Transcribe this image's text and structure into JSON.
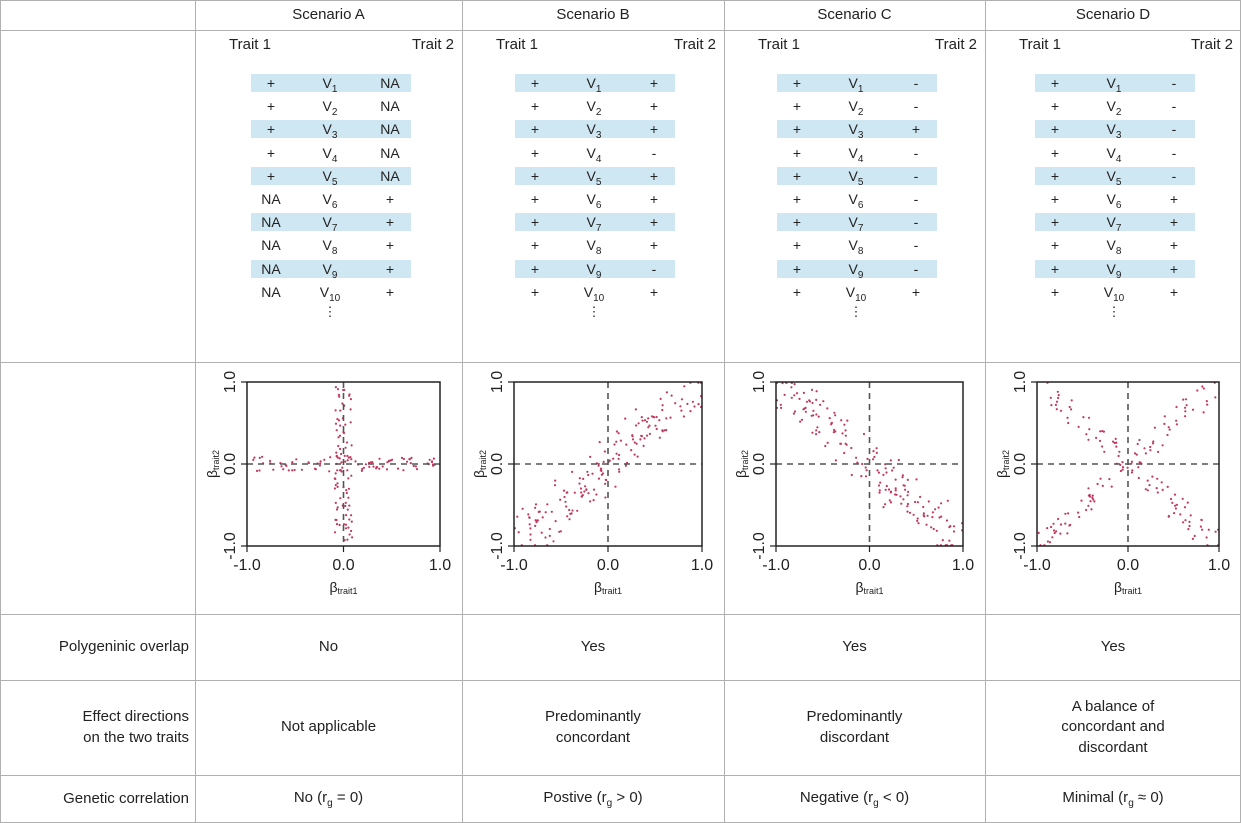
{
  "scenarios": [
    {
      "name": "Scenario A",
      "trait1_label": "Trait 1",
      "trait2_label": "Trait 2",
      "variants": [
        {
          "t1": "+",
          "v": "V1",
          "t2": "NA"
        },
        {
          "t1": "+",
          "v": "V2",
          "t2": "NA"
        },
        {
          "t1": "+",
          "v": "V3",
          "t2": "NA"
        },
        {
          "t1": "+",
          "v": "V4",
          "t2": "NA"
        },
        {
          "t1": "+",
          "v": "V5",
          "t2": "NA"
        },
        {
          "t1": "NA",
          "v": "V6",
          "t2": "+"
        },
        {
          "t1": "NA",
          "v": "V7",
          "t2": "+"
        },
        {
          "t1": "NA",
          "v": "V8",
          "t2": "+"
        },
        {
          "t1": "NA",
          "v": "V9",
          "t2": "+"
        },
        {
          "t1": "NA",
          "v": "V10",
          "t2": "+"
        }
      ],
      "polygenic_overlap": "No",
      "effect_directions": [
        "Not applicable"
      ],
      "genetic_correlation": "No (r",
      "genetic_correlation_tail": " = 0)"
    },
    {
      "name": "Scenario B",
      "trait1_label": "Trait 1",
      "trait2_label": "Trait 2",
      "variants": [
        {
          "t1": "+",
          "v": "V1",
          "t2": "+"
        },
        {
          "t1": "+",
          "v": "V2",
          "t2": "+"
        },
        {
          "t1": "+",
          "v": "V3",
          "t2": "+"
        },
        {
          "t1": "+",
          "v": "V4",
          "t2": "-"
        },
        {
          "t1": "+",
          "v": "V5",
          "t2": "+"
        },
        {
          "t1": "+",
          "v": "V6",
          "t2": "+"
        },
        {
          "t1": "+",
          "v": "V7",
          "t2": "+"
        },
        {
          "t1": "+",
          "v": "V8",
          "t2": "+"
        },
        {
          "t1": "+",
          "v": "V9",
          "t2": "-"
        },
        {
          "t1": "+",
          "v": "V10",
          "t2": "+"
        }
      ],
      "polygenic_overlap": "Yes",
      "effect_directions": [
        "Predominantly",
        "concordant"
      ],
      "genetic_correlation": "Postive (r",
      "genetic_correlation_tail": " > 0)"
    },
    {
      "name": "Scenario C",
      "trait1_label": "Trait 1",
      "trait2_label": "Trait 2",
      "variants": [
        {
          "t1": "+",
          "v": "V1",
          "t2": "-"
        },
        {
          "t1": "+",
          "v": "V2",
          "t2": "-"
        },
        {
          "t1": "+",
          "v": "V3",
          "t2": "+"
        },
        {
          "t1": "+",
          "v": "V4",
          "t2": "-"
        },
        {
          "t1": "+",
          "v": "V5",
          "t2": "-"
        },
        {
          "t1": "+",
          "v": "V6",
          "t2": "-"
        },
        {
          "t1": "+",
          "v": "V7",
          "t2": "-"
        },
        {
          "t1": "+",
          "v": "V8",
          "t2": "-"
        },
        {
          "t1": "+",
          "v": "V9",
          "t2": "-"
        },
        {
          "t1": "+",
          "v": "V10",
          "t2": "+"
        }
      ],
      "polygenic_overlap": "Yes",
      "effect_directions": [
        "Predominantly",
        "discordant"
      ],
      "genetic_correlation": "Negative (r",
      "genetic_correlation_tail": " < 0)"
    },
    {
      "name": "Scenario D",
      "trait1_label": "Trait 1",
      "trait2_label": "Trait 2",
      "variants": [
        {
          "t1": "+",
          "v": "V1",
          "t2": "-"
        },
        {
          "t1": "+",
          "v": "V2",
          "t2": "-"
        },
        {
          "t1": "+",
          "v": "V3",
          "t2": "-"
        },
        {
          "t1": "+",
          "v": "V4",
          "t2": "-"
        },
        {
          "t1": "+",
          "v": "V5",
          "t2": "-"
        },
        {
          "t1": "+",
          "v": "V6",
          "t2": "+"
        },
        {
          "t1": "+",
          "v": "V7",
          "t2": "+"
        },
        {
          "t1": "+",
          "v": "V8",
          "t2": "+"
        },
        {
          "t1": "+",
          "v": "V9",
          "t2": "+"
        },
        {
          "t1": "+",
          "v": "V10",
          "t2": "+"
        }
      ],
      "polygenic_overlap": "Yes",
      "effect_directions": [
        "A balance of",
        "concordant and",
        "discordant"
      ],
      "genetic_correlation": "Minimal (r",
      "genetic_correlation_tail": " ≈ 0)"
    }
  ],
  "row_labels": {
    "polygenic_overlap": "Polygeninic overlap",
    "effect_directions": [
      "Effect directions",
      "on the two traits"
    ],
    "genetic_correlation": "Genetic correlation"
  },
  "continuation": "⋮",
  "rg_subscript": "g",
  "colors": {
    "shade": "#cfe7f2",
    "points": "#c0395e",
    "grid_line": "#b0b0b0"
  },
  "plot": {
    "x_label_main": "β",
    "x_label_sub": "trait1",
    "y_label_main": "β",
    "y_label_sub": "trait2",
    "x_ticks": [
      "-1.0",
      "0.0",
      "1.0"
    ],
    "y_ticks": [
      "-1.0",
      "0.0",
      "1.0"
    ]
  },
  "chart_data": [
    {
      "type": "scatter",
      "xlim": [
        -1,
        1
      ],
      "ylim": [
        -1,
        1
      ],
      "pattern": "cross",
      "reference_lines": [
        0,
        0
      ]
    },
    {
      "type": "scatter",
      "xlim": [
        -1,
        1
      ],
      "ylim": [
        -1,
        1
      ],
      "pattern": "positive-diagonal",
      "reference_lines": [
        0,
        0
      ]
    },
    {
      "type": "scatter",
      "xlim": [
        -1,
        1
      ],
      "ylim": [
        -1,
        1
      ],
      "pattern": "negative-diagonal",
      "reference_lines": [
        0,
        0
      ]
    },
    {
      "type": "scatter",
      "xlim": [
        -1,
        1
      ],
      "ylim": [
        -1,
        1
      ],
      "pattern": "x-shape",
      "reference_lines": [
        0,
        0
      ]
    }
  ]
}
